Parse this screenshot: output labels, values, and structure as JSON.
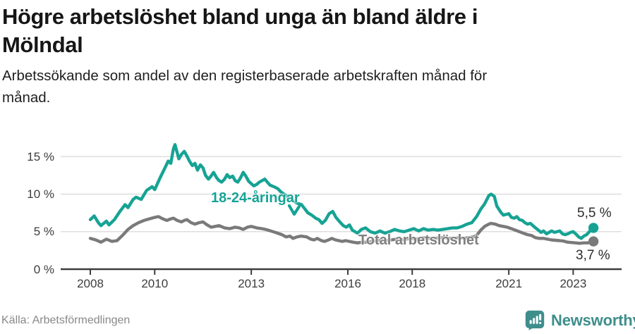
{
  "header": {
    "title_lines": [
      "Högre arbetslöshet bland unga än bland äldre i",
      "Mölndal"
    ],
    "subtitle_lines": [
      "Arbetssökande som andel av den registerbaserade arbetskraften månad för",
      "månad."
    ]
  },
  "chart_data": {
    "type": "line",
    "title": "Högre arbetslöshet bland unga än bland äldre i Mölndal",
    "subtitle": "Arbetssökande som andel av den registerbaserade arbetskraften månad för månad.",
    "xlabel": "",
    "ylabel": "%",
    "ylim": [
      0,
      17.5
    ],
    "x_range": [
      2008.0,
      2023.63
    ],
    "grid": "horizontal",
    "legend_position": "inline-labels",
    "y_ticks": [
      0,
      5,
      10,
      15
    ],
    "y_tick_labels": [
      "0 %",
      "5 %",
      "10 %",
      "15 %"
    ],
    "x_ticks": [
      2008,
      2010,
      2013,
      2016,
      2018,
      2021,
      2023
    ],
    "series": [
      {
        "name": "18-24-åringar",
        "color": "#16a394",
        "end_label": "5,5 %",
        "end_value": 5.5,
        "points": [
          [
            2008.0,
            6.6
          ],
          [
            2008.12,
            7.1
          ],
          [
            2008.25,
            6.2
          ],
          [
            2008.33,
            5.8
          ],
          [
            2008.5,
            6.4
          ],
          [
            2008.58,
            5.9
          ],
          [
            2008.75,
            6.6
          ],
          [
            2008.92,
            7.7
          ],
          [
            2009.08,
            8.6
          ],
          [
            2009.17,
            8.2
          ],
          [
            2009.33,
            9.3
          ],
          [
            2009.42,
            9.6
          ],
          [
            2009.58,
            9.3
          ],
          [
            2009.75,
            10.5
          ],
          [
            2009.92,
            11.0
          ],
          [
            2010.0,
            10.6
          ],
          [
            2010.17,
            12.2
          ],
          [
            2010.33,
            13.6
          ],
          [
            2010.42,
            14.4
          ],
          [
            2010.5,
            14.1
          ],
          [
            2010.58,
            16.0
          ],
          [
            2010.63,
            16.6
          ],
          [
            2010.7,
            15.5
          ],
          [
            2010.75,
            14.7
          ],
          [
            2010.83,
            15.3
          ],
          [
            2010.92,
            15.7
          ],
          [
            2011.0,
            15.1
          ],
          [
            2011.08,
            14.4
          ],
          [
            2011.17,
            13.8
          ],
          [
            2011.25,
            14.1
          ],
          [
            2011.33,
            13.2
          ],
          [
            2011.42,
            13.9
          ],
          [
            2011.5,
            13.5
          ],
          [
            2011.58,
            12.5
          ],
          [
            2011.67,
            12.0
          ],
          [
            2011.75,
            12.4
          ],
          [
            2011.83,
            12.9
          ],
          [
            2011.92,
            12.2
          ],
          [
            2012.0,
            11.8
          ],
          [
            2012.08,
            11.6
          ],
          [
            2012.17,
            12.0
          ],
          [
            2012.25,
            12.6
          ],
          [
            2012.33,
            12.2
          ],
          [
            2012.42,
            12.4
          ],
          [
            2012.5,
            11.8
          ],
          [
            2012.58,
            11.6
          ],
          [
            2012.67,
            12.2
          ],
          [
            2012.75,
            12.9
          ],
          [
            2012.83,
            12.4
          ],
          [
            2012.92,
            11.7
          ],
          [
            2013.0,
            11.4
          ],
          [
            2013.08,
            11.1
          ],
          [
            2013.17,
            11.3
          ],
          [
            2013.25,
            11.6
          ],
          [
            2013.42,
            12.0
          ],
          [
            2013.5,
            11.6
          ],
          [
            2013.58,
            11.2
          ],
          [
            2013.75,
            10.9
          ],
          [
            2013.83,
            10.7
          ],
          [
            2013.92,
            10.3
          ],
          [
            2014.08,
            9.8
          ],
          [
            2014.25,
            9.3
          ],
          [
            2014.42,
            8.8
          ],
          [
            2014.56,
            8.6
          ],
          [
            2014.67,
            8.0
          ],
          [
            2014.76,
            7.5
          ],
          [
            2014.88,
            7.2
          ],
          [
            2015.0,
            6.8
          ],
          [
            2015.1,
            6.6
          ],
          [
            2015.2,
            6.1
          ],
          [
            2015.3,
            6.5
          ],
          [
            2015.42,
            7.4
          ],
          [
            2015.53,
            7.7
          ],
          [
            2015.63,
            6.9
          ],
          [
            2015.75,
            6.3
          ],
          [
            2015.86,
            5.8
          ],
          [
            2015.95,
            5.6
          ],
          [
            2016.05,
            5.9
          ],
          [
            2016.14,
            5.2
          ],
          [
            2016.3,
            4.8
          ],
          [
            2016.42,
            5.3
          ],
          [
            2016.55,
            5.5
          ],
          [
            2016.7,
            5.0
          ],
          [
            2016.85,
            4.8
          ],
          [
            2017.0,
            5.1
          ],
          [
            2017.15,
            4.8
          ],
          [
            2017.3,
            5.0
          ],
          [
            2017.45,
            5.3
          ],
          [
            2017.6,
            5.1
          ],
          [
            2017.75,
            5.0
          ],
          [
            2017.9,
            5.2
          ],
          [
            2018.05,
            5.4
          ],
          [
            2018.2,
            5.1
          ],
          [
            2018.35,
            5.4
          ],
          [
            2018.5,
            5.2
          ],
          [
            2018.65,
            5.3
          ],
          [
            2018.8,
            5.2
          ],
          [
            2018.95,
            5.3
          ],
          [
            2019.1,
            5.4
          ],
          [
            2019.25,
            5.5
          ],
          [
            2019.4,
            5.5
          ],
          [
            2019.55,
            5.7
          ],
          [
            2019.7,
            6.0
          ],
          [
            2019.85,
            6.2
          ],
          [
            2020.0,
            7.0
          ],
          [
            2020.13,
            8.0
          ],
          [
            2020.25,
            8.7
          ],
          [
            2020.38,
            9.8
          ],
          [
            2020.45,
            10.0
          ],
          [
            2020.55,
            9.7
          ],
          [
            2020.63,
            8.4
          ],
          [
            2020.75,
            7.6
          ],
          [
            2020.83,
            7.2
          ],
          [
            2020.92,
            7.3
          ],
          [
            2021.0,
            7.4
          ],
          [
            2021.08,
            6.9
          ],
          [
            2021.17,
            6.8
          ],
          [
            2021.25,
            7.0
          ],
          [
            2021.33,
            6.6
          ],
          [
            2021.42,
            6.5
          ],
          [
            2021.5,
            6.2
          ],
          [
            2021.58,
            6.0
          ],
          [
            2021.67,
            6.1
          ],
          [
            2021.75,
            5.8
          ],
          [
            2021.83,
            5.5
          ],
          [
            2021.92,
            5.2
          ],
          [
            2022.0,
            4.9
          ],
          [
            2022.08,
            5.1
          ],
          [
            2022.17,
            4.7
          ],
          [
            2022.25,
            4.9
          ],
          [
            2022.33,
            5.1
          ],
          [
            2022.42,
            4.9
          ],
          [
            2022.5,
            5.0
          ],
          [
            2022.58,
            5.1
          ],
          [
            2022.67,
            4.7
          ],
          [
            2022.75,
            4.6
          ],
          [
            2022.83,
            4.7
          ],
          [
            2022.92,
            4.9
          ],
          [
            2023.0,
            5.0
          ],
          [
            2023.08,
            4.7
          ],
          [
            2023.17,
            4.3
          ],
          [
            2023.25,
            4.1
          ],
          [
            2023.33,
            4.4
          ],
          [
            2023.42,
            4.6
          ],
          [
            2023.5,
            5.0
          ],
          [
            2023.58,
            5.3
          ],
          [
            2023.63,
            5.5
          ]
        ]
      },
      {
        "name": "Total arbetslöshet",
        "color": "#7a7a7a",
        "end_label": "3,7 %",
        "end_value": 3.7,
        "points": [
          [
            2008.0,
            4.1
          ],
          [
            2008.17,
            3.9
          ],
          [
            2008.33,
            3.6
          ],
          [
            2008.5,
            4.0
          ],
          [
            2008.67,
            3.7
          ],
          [
            2008.83,
            3.8
          ],
          [
            2009.0,
            4.5
          ],
          [
            2009.17,
            5.3
          ],
          [
            2009.33,
            5.8
          ],
          [
            2009.5,
            6.2
          ],
          [
            2009.67,
            6.5
          ],
          [
            2009.83,
            6.7
          ],
          [
            2010.0,
            6.9
          ],
          [
            2010.12,
            7.0
          ],
          [
            2010.25,
            6.7
          ],
          [
            2010.38,
            6.5
          ],
          [
            2010.5,
            6.7
          ],
          [
            2010.58,
            6.8
          ],
          [
            2010.7,
            6.5
          ],
          [
            2010.83,
            6.3
          ],
          [
            2010.92,
            6.5
          ],
          [
            2011.0,
            6.6
          ],
          [
            2011.13,
            6.2
          ],
          [
            2011.25,
            6.0
          ],
          [
            2011.38,
            6.2
          ],
          [
            2011.5,
            6.3
          ],
          [
            2011.63,
            5.9
          ],
          [
            2011.75,
            5.6
          ],
          [
            2011.88,
            5.7
          ],
          [
            2012.0,
            5.8
          ],
          [
            2012.17,
            5.5
          ],
          [
            2012.33,
            5.4
          ],
          [
            2012.5,
            5.6
          ],
          [
            2012.63,
            5.5
          ],
          [
            2012.75,
            5.3
          ],
          [
            2012.88,
            5.6
          ],
          [
            2013.0,
            5.7
          ],
          [
            2013.17,
            5.5
          ],
          [
            2013.33,
            5.4
          ],
          [
            2013.45,
            5.3
          ],
          [
            2013.6,
            5.1
          ],
          [
            2013.75,
            4.9
          ],
          [
            2013.95,
            4.6
          ],
          [
            2014.08,
            4.3
          ],
          [
            2014.2,
            4.4
          ],
          [
            2014.3,
            4.1
          ],
          [
            2014.42,
            4.3
          ],
          [
            2014.55,
            4.4
          ],
          [
            2014.72,
            4.3
          ],
          [
            2014.85,
            4.0
          ],
          [
            2014.95,
            3.9
          ],
          [
            2015.05,
            4.1
          ],
          [
            2015.18,
            3.8
          ],
          [
            2015.28,
            3.7
          ],
          [
            2015.4,
            3.9
          ],
          [
            2015.5,
            4.1
          ],
          [
            2015.62,
            3.9
          ],
          [
            2015.72,
            3.8
          ],
          [
            2015.83,
            3.7
          ],
          [
            2015.93,
            3.8
          ],
          [
            2016.05,
            3.7
          ],
          [
            2016.16,
            3.6
          ],
          [
            2016.3,
            3.5
          ],
          [
            2016.45,
            3.6
          ],
          [
            2016.6,
            3.6
          ],
          [
            2016.75,
            3.7
          ],
          [
            2016.9,
            3.8
          ],
          [
            2017.05,
            3.9
          ],
          [
            2017.2,
            3.8
          ],
          [
            2017.35,
            3.9
          ],
          [
            2017.5,
            4.0
          ],
          [
            2017.65,
            3.9
          ],
          [
            2017.8,
            4.0
          ],
          [
            2017.95,
            4.1
          ],
          [
            2018.1,
            4.0
          ],
          [
            2018.25,
            4.1
          ],
          [
            2018.4,
            4.2
          ],
          [
            2018.55,
            4.1
          ],
          [
            2018.7,
            4.1
          ],
          [
            2018.85,
            4.2
          ],
          [
            2019.0,
            4.2
          ],
          [
            2019.15,
            4.1
          ],
          [
            2019.3,
            4.1
          ],
          [
            2019.45,
            4.2
          ],
          [
            2019.6,
            4.1
          ],
          [
            2019.75,
            4.2
          ],
          [
            2019.9,
            4.3
          ],
          [
            2020.0,
            4.5
          ],
          [
            2020.13,
            5.2
          ],
          [
            2020.25,
            5.7
          ],
          [
            2020.38,
            6.0
          ],
          [
            2020.45,
            6.1
          ],
          [
            2020.58,
            6.0
          ],
          [
            2020.7,
            5.8
          ],
          [
            2020.83,
            5.7
          ],
          [
            2020.95,
            5.6
          ],
          [
            2021.08,
            5.4
          ],
          [
            2021.2,
            5.2
          ],
          [
            2021.33,
            5.0
          ],
          [
            2021.45,
            4.8
          ],
          [
            2021.58,
            4.6
          ],
          [
            2021.7,
            4.5
          ],
          [
            2021.83,
            4.2
          ],
          [
            2021.95,
            4.1
          ],
          [
            2022.08,
            4.1
          ],
          [
            2022.2,
            4.0
          ],
          [
            2022.33,
            3.9
          ],
          [
            2022.45,
            3.85
          ],
          [
            2022.58,
            3.8
          ],
          [
            2022.7,
            3.75
          ],
          [
            2022.83,
            3.6
          ],
          [
            2022.95,
            3.55
          ],
          [
            2023.08,
            3.5
          ],
          [
            2023.2,
            3.45
          ],
          [
            2023.33,
            3.5
          ],
          [
            2023.45,
            3.5
          ],
          [
            2023.55,
            3.6
          ],
          [
            2023.63,
            3.7
          ]
        ]
      }
    ]
  },
  "footer": {
    "source": "Källa: Arbetsförmedlingen",
    "brand": "Newsworthy"
  },
  "colors": {
    "accent_teal": "#16a394",
    "line_gray": "#7a7a7a",
    "brand_teal": "#3e8e8c",
    "grid": "#d8d8d8",
    "axis": "#3d3d3d"
  }
}
